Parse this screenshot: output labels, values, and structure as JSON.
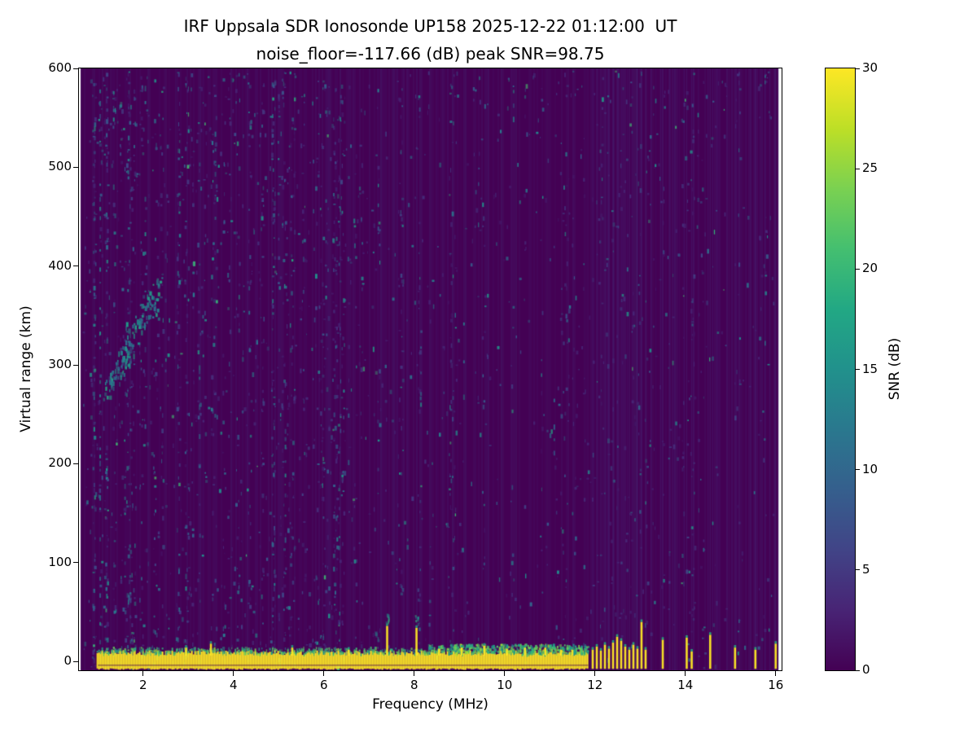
{
  "title": {
    "line1": "IRF Uppsala SDR Ionosonde UP158 2025-12-22 01:12:00  UT",
    "line2": "noise_floor=-117.66 (dB) peak SNR=98.75"
  },
  "axes": {
    "xlabel": "Frequency (MHz)",
    "ylabel": "Virtual range (km)",
    "x_ticks": [
      2,
      4,
      6,
      8,
      10,
      12,
      14,
      16
    ],
    "y_ticks": [
      0,
      100,
      200,
      300,
      400,
      500,
      600
    ],
    "xlim": [
      0.58,
      16.13
    ],
    "ylim": [
      -9,
      600
    ]
  },
  "colorbar": {
    "label": "SNR (dB)",
    "ticks": [
      0,
      5,
      10,
      15,
      20,
      25,
      30
    ],
    "min": 0,
    "max": 30,
    "colormap": "viridis"
  },
  "chart_data": {
    "type": "heatmap",
    "title": "IRF Uppsala SDR Ionosonde UP158 2025-12-22 01:12:00  UT / noise_floor=-117.66 (dB) peak SNR=98.75",
    "station": "IRF Uppsala SDR Ionosonde UP158",
    "timestamp_ut": "2025-12-22 01:12:00",
    "noise_floor_db": -117.66,
    "peak_snr_db": 98.75,
    "xlabel": "Frequency (MHz)",
    "ylabel": "Virtual range (km)",
    "xlim": [
      0.58,
      16.13
    ],
    "ylim": [
      -9,
      600
    ],
    "colorbar": {
      "label": "SNR (dB)",
      "range": [
        0,
        30
      ]
    },
    "colormap": "viridis",
    "colormap_stops": [
      {
        "pos": 0.0,
        "color": "#440154"
      },
      {
        "pos": 0.1,
        "color": "#482475"
      },
      {
        "pos": 0.2,
        "color": "#414487"
      },
      {
        "pos": 0.3,
        "color": "#355f8d"
      },
      {
        "pos": 0.4,
        "color": "#2a788e"
      },
      {
        "pos": 0.5,
        "color": "#21918c"
      },
      {
        "pos": 0.6,
        "color": "#22a884"
      },
      {
        "pos": 0.7,
        "color": "#44bf70"
      },
      {
        "pos": 0.8,
        "color": "#7ad151"
      },
      {
        "pos": 0.9,
        "color": "#bddf26"
      },
      {
        "pos": 1.0,
        "color": "#fde725"
      }
    ],
    "features": {
      "ground_return_band": {
        "freq": [
          0.97,
          11.85
        ],
        "range_km": [
          -7,
          8
        ],
        "snr_db": 30
      },
      "band_bumps": [
        [
          2.95,
          14
        ],
        [
          3.5,
          18
        ],
        [
          5.3,
          14
        ],
        [
          6.55,
          12
        ],
        [
          7.4,
          36
        ],
        [
          8.05,
          34
        ],
        [
          8.55,
          13
        ],
        [
          9.05,
          14
        ],
        [
          9.55,
          16
        ],
        [
          10.05,
          13
        ],
        [
          10.45,
          14
        ],
        [
          10.9,
          14
        ],
        [
          11.25,
          12
        ],
        [
          11.5,
          12
        ]
      ],
      "interference_spikes": [
        [
          11.95,
          12
        ],
        [
          12.04,
          15
        ],
        [
          12.13,
          11
        ],
        [
          12.22,
          17
        ],
        [
          12.31,
          13
        ],
        [
          12.4,
          19
        ],
        [
          12.49,
          25
        ],
        [
          12.58,
          21
        ],
        [
          12.67,
          15
        ],
        [
          12.76,
          12
        ],
        [
          12.85,
          17
        ],
        [
          12.94,
          13
        ],
        [
          13.03,
          40
        ],
        [
          13.12,
          12
        ],
        [
          13.5,
          22
        ],
        [
          14.03,
          24
        ],
        [
          14.14,
          10
        ],
        [
          14.55,
          27
        ],
        [
          15.1,
          14
        ],
        [
          15.55,
          12
        ],
        [
          16.0,
          18
        ]
      ],
      "echo_trace": {
        "freq": [
          1.15,
          2.35
        ],
        "range_km": [
          272,
          378
        ],
        "snr_db_range": [
          8,
          18
        ]
      },
      "vertical_streaks": [
        [
          1.05,
          -5,
          600,
          0.5
        ],
        [
          1.35,
          420,
          600,
          0.3
        ],
        [
          1.6,
          60,
          210,
          0.4
        ],
        [
          2.05,
          240,
          600,
          0.35
        ],
        [
          2.5,
          300,
          420,
          0.3
        ],
        [
          2.95,
          60,
          140,
          0.5
        ],
        [
          3.25,
          260,
          340,
          0.3
        ],
        [
          3.6,
          450,
          560,
          0.3
        ],
        [
          4.35,
          270,
          390,
          0.3
        ],
        [
          5.15,
          170,
          245,
          0.8
        ],
        [
          5.15,
          90,
          160,
          0.35
        ],
        [
          5.55,
          330,
          430,
          0.25
        ],
        [
          6.05,
          370,
          480,
          0.25
        ],
        [
          6.55,
          180,
          260,
          0.25
        ],
        [
          7.1,
          300,
          420,
          0.2
        ],
        [
          8.15,
          250,
          330,
          0.2
        ],
        [
          9.1,
          270,
          345,
          0.3
        ],
        [
          9.55,
          100,
          180,
          0.25
        ],
        [
          10.2,
          530,
          585,
          0.35
        ],
        [
          10.55,
          60,
          120,
          0.3
        ],
        [
          11.1,
          200,
          280,
          0.2
        ]
      ],
      "noise_speckle": {
        "snr_db_range": [
          3,
          16
        ],
        "denser_below_mhz": 6.6
      }
    }
  }
}
